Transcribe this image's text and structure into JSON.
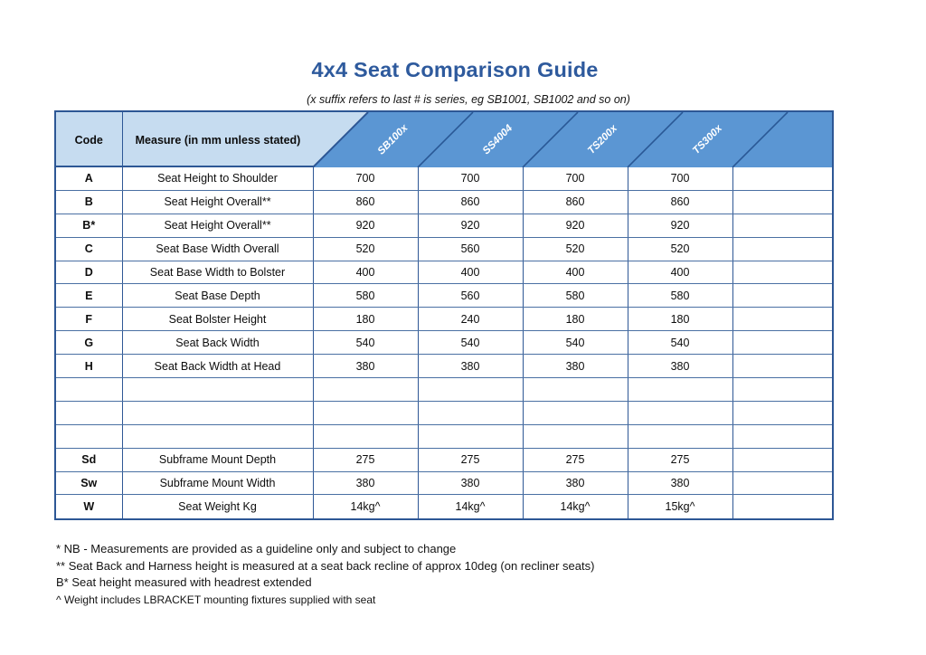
{
  "page": {
    "title": "4x4 Seat Comparison Guide",
    "subtitle": "(x suffix refers to last # is series, eg SB1001, SB1002 and so on)"
  },
  "table": {
    "corner": {
      "code_label": "Code",
      "measure_label": "Measure (in mm unless stated)"
    },
    "columns": [
      "SB100x",
      "SS4004",
      "TS200x",
      "TS300x",
      ""
    ],
    "rows": [
      {
        "code": "A",
        "measure": "Seat Height to Shoulder",
        "values": [
          "700",
          "700",
          "700",
          "700",
          ""
        ]
      },
      {
        "code": "B",
        "measure": "Seat Height Overall**",
        "values": [
          "860",
          "860",
          "860",
          "860",
          ""
        ]
      },
      {
        "code": "B*",
        "measure": "Seat Height Overall**",
        "values": [
          "920",
          "920",
          "920",
          "920",
          ""
        ]
      },
      {
        "code": "C",
        "measure": "Seat Base Width Overall",
        "values": [
          "520",
          "560",
          "520",
          "520",
          ""
        ]
      },
      {
        "code": "D",
        "measure": "Seat Base Width to Bolster",
        "values": [
          "400",
          "400",
          "400",
          "400",
          ""
        ]
      },
      {
        "code": "E",
        "measure": "Seat Base Depth",
        "values": [
          "580",
          "560",
          "580",
          "580",
          ""
        ]
      },
      {
        "code": "F",
        "measure": "Seat Bolster Height",
        "values": [
          "180",
          "240",
          "180",
          "180",
          ""
        ]
      },
      {
        "code": "G",
        "measure": "Seat Back Width",
        "values": [
          "540",
          "540",
          "540",
          "540",
          ""
        ]
      },
      {
        "code": "H",
        "measure": "Seat Back Width at Head",
        "values": [
          "380",
          "380",
          "380",
          "380",
          ""
        ]
      },
      {
        "code": "",
        "measure": "",
        "values": [
          "",
          "",
          "",
          "",
          ""
        ]
      },
      {
        "code": "",
        "measure": "",
        "values": [
          "",
          "",
          "",
          "",
          ""
        ]
      },
      {
        "code": "",
        "measure": "",
        "values": [
          "",
          "",
          "",
          "",
          ""
        ]
      },
      {
        "code": "Sd",
        "measure": "Subframe Mount Depth",
        "values": [
          "275",
          "275",
          "275",
          "275",
          ""
        ]
      },
      {
        "code": "Sw",
        "measure": "Subframe Mount Width",
        "values": [
          "380",
          "380",
          "380",
          "380",
          ""
        ]
      },
      {
        "code": "W",
        "measure": "Seat Weight Kg",
        "values": [
          "14kg^",
          "14kg^",
          "14kg^",
          "15kg^",
          ""
        ]
      }
    ]
  },
  "footnotes": [
    "* NB - Measurements are provided as a guideline only and subject to change",
    "** Seat Back and Harness height is measured at a seat back recline of approx 10deg (on recliner seats)",
    "B* Seat height measured with headrest extended",
    "^ Weight includes LBRACKET mounting fixtures supplied with seat"
  ],
  "colors": {
    "title_blue": "#2e5a9d",
    "header_light_blue": "#c6dcf0",
    "header_dark_blue": "#5b96d3",
    "border_dark": "#2d5795",
    "border_row": "#4a70a3",
    "label_text": "#ffffff"
  }
}
